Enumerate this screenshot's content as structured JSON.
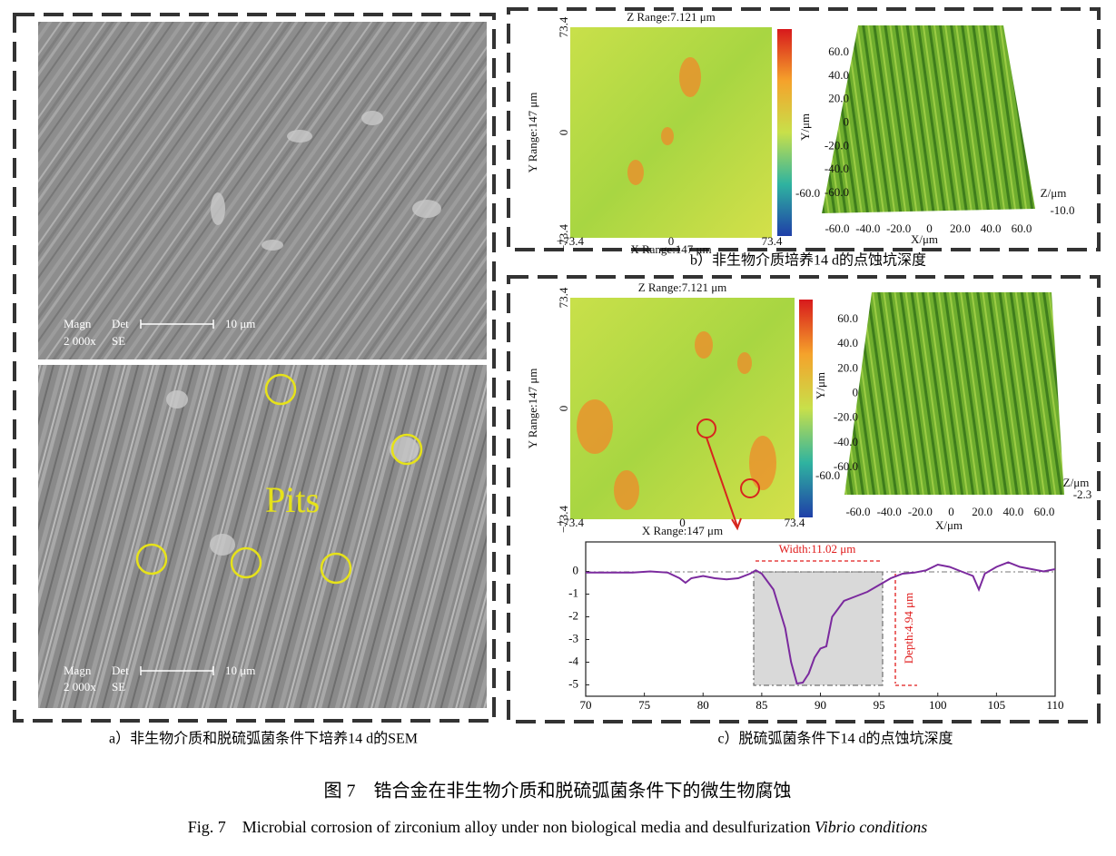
{
  "panel_a": {
    "caption": "a）非生物介质和脱硫弧菌条件下培养14 d的SEM",
    "top_image": {
      "magn_label": "Magn",
      "det_label": "Det",
      "scale": "10 μm",
      "magn": "2 000x",
      "det": "SE"
    },
    "bottom_image": {
      "magn_label": "Magn",
      "det_label": "Det",
      "scale": "10 μm",
      "magn": "2 000x",
      "det": "SE",
      "annotation": "Pits"
    }
  },
  "panel_b": {
    "caption": "b）非生物介质培养14 d的点蚀坑深度",
    "map": {
      "z_range": "Z Range:7.121 μm",
      "y_range": "Y Range:147 μm",
      "x_range": "X Range:147 μm",
      "y_ticks": [
        "73.4",
        "0",
        "−73.4"
      ],
      "x_ticks": [
        "−73.4",
        "0",
        "73.4"
      ],
      "colorbar_tick": "-60.0"
    },
    "surface": {
      "y_label": "Y/μm",
      "y_ticks": [
        "60.0",
        "40.0",
        "20.0",
        "0",
        "-20.0",
        "-40.0",
        "-60.0"
      ],
      "x_label": "X/μm",
      "x_ticks": [
        "-60.0",
        "-40.0",
        "-20.0",
        "0",
        "20.0",
        "40.0",
        "60.0"
      ],
      "z_label": "Z/μm",
      "z_tick": "-10.0"
    }
  },
  "panel_c": {
    "caption": "c）脱硫弧菌条件下14 d的点蚀坑深度",
    "map": {
      "z_range": "Z Range:7.121 μm",
      "y_range": "Y Range:147 μm",
      "x_range": "X Range:147 μm",
      "y_ticks": [
        "73.4",
        "0",
        "−73.4"
      ],
      "x_ticks": [
        "−73.4",
        "0",
        "73.4"
      ],
      "colorbar_tick": "-60.0"
    },
    "surface": {
      "y_label": "Y/μm",
      "y_ticks": [
        "60.0",
        "40.0",
        "20.0",
        "0",
        "-20.0",
        "-40.0",
        "-60.0"
      ],
      "x_label": "X/μm",
      "x_ticks": [
        "-60.0",
        "-40.0",
        "-20.0",
        "0",
        "20.0",
        "40.0",
        "60.0"
      ],
      "z_label": "Z/μm",
      "z_tick": "-2.3"
    },
    "profile": {
      "type": "line",
      "color": "#7b2a9e",
      "width_label": "Width:11.02 μm",
      "depth_label": "Depth:4.94 μm",
      "x": [
        70,
        72,
        74,
        75.5,
        77,
        78,
        78.5,
        79,
        80,
        81,
        82,
        83,
        84,
        84.5,
        85,
        86,
        87,
        87.5,
        88,
        88.5,
        89,
        89.5,
        90,
        90.5,
        91,
        92,
        93,
        94,
        95,
        96,
        97,
        98,
        99,
        100,
        101,
        102,
        103,
        103.5,
        104,
        105,
        106,
        107,
        108,
        109,
        110
      ],
      "values": [
        -0.05,
        -0.05,
        -0.05,
        0,
        -0.05,
        -0.3,
        -0.5,
        -0.3,
        -0.2,
        -0.3,
        -0.35,
        -0.3,
        -0.1,
        0.05,
        -0.1,
        -0.8,
        -2.5,
        -4,
        -4.94,
        -4.9,
        -4.5,
        -3.8,
        -3.4,
        -3.3,
        -2,
        -1.3,
        -1.1,
        -0.9,
        -0.6,
        -0.3,
        -0.1,
        -0.05,
        0.05,
        0.3,
        0.2,
        0,
        -0.2,
        -0.8,
        -0.1,
        0.2,
        0.4,
        0.2,
        0.1,
        0,
        0.1
      ],
      "xlim": [
        70,
        110
      ],
      "xticks": [
        70,
        75,
        80,
        85,
        90,
        95,
        100,
        105,
        110
      ],
      "ylim": [
        -5.5,
        1.3
      ],
      "yticks": [
        0,
        -1,
        -2,
        -3,
        -4,
        -5
      ]
    }
  },
  "figure_caption": {
    "zh": "图 7　锆合金在非生物介质和脱硫弧菌条件下的微生物腐蚀",
    "en": "Fig. 7　Microbial corrosion of zirconium alloy under non biological media and desulfurization ",
    "en_italic": "Vibrio conditions"
  }
}
